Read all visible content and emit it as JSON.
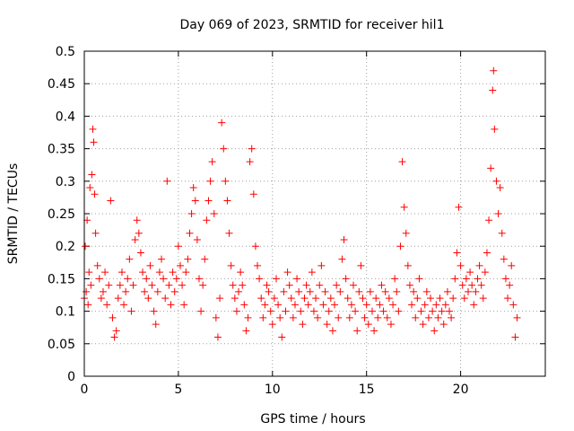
{
  "chart_data": {
    "type": "scatter",
    "title": "Day 069 of 2023, SRMTID for receiver hil1",
    "xlabel": "GPS time / hours",
    "ylabel": "SRMTID / TECUs",
    "xlim": [
      0,
      24.5
    ],
    "ylim": [
      0,
      0.5
    ],
    "x_ticks": [
      0,
      5,
      10,
      15,
      20
    ],
    "x_tick_labels": [
      "0",
      "5",
      "10",
      "15",
      "20"
    ],
    "y_ticks": [
      0,
      0.05,
      0.1,
      0.15,
      0.2,
      0.25,
      0.3,
      0.35,
      0.4,
      0.45,
      0.5
    ],
    "y_tick_labels": [
      "0",
      "0.05",
      "0.1",
      "0.15",
      "0.2",
      "0.25",
      "0.3",
      "0.35",
      "0.4",
      "0.45",
      "0.5"
    ],
    "grid": true,
    "marker": "plus",
    "color": "#ff0000",
    "series": [
      {
        "name": "SRMTID",
        "points": [
          [
            0.0,
            0.12
          ],
          [
            0.05,
            0.2
          ],
          [
            0.1,
            0.13
          ],
          [
            0.15,
            0.24
          ],
          [
            0.2,
            0.11
          ],
          [
            0.25,
            0.16
          ],
          [
            0.3,
            0.29
          ],
          [
            0.35,
            0.14
          ],
          [
            0.4,
            0.31
          ],
          [
            0.45,
            0.38
          ],
          [
            0.5,
            0.36
          ],
          [
            0.55,
            0.28
          ],
          [
            0.6,
            0.22
          ],
          [
            0.7,
            0.17
          ],
          [
            0.8,
            0.15
          ],
          [
            0.9,
            0.12
          ],
          [
            1.0,
            0.13
          ],
          [
            1.1,
            0.16
          ],
          [
            1.2,
            0.11
          ],
          [
            1.3,
            0.14
          ],
          [
            1.4,
            0.27
          ],
          [
            1.5,
            0.09
          ],
          [
            1.6,
            0.06
          ],
          [
            1.7,
            0.07
          ],
          [
            1.8,
            0.12
          ],
          [
            1.9,
            0.14
          ],
          [
            2.0,
            0.16
          ],
          [
            2.1,
            0.11
          ],
          [
            2.2,
            0.13
          ],
          [
            2.3,
            0.15
          ],
          [
            2.4,
            0.18
          ],
          [
            2.5,
            0.1
          ],
          [
            2.6,
            0.14
          ],
          [
            2.7,
            0.21
          ],
          [
            2.8,
            0.24
          ],
          [
            2.9,
            0.22
          ],
          [
            3.0,
            0.19
          ],
          [
            3.1,
            0.16
          ],
          [
            3.2,
            0.13
          ],
          [
            3.3,
            0.15
          ],
          [
            3.4,
            0.12
          ],
          [
            3.5,
            0.17
          ],
          [
            3.6,
            0.14
          ],
          [
            3.7,
            0.1
          ],
          [
            3.8,
            0.08
          ],
          [
            3.9,
            0.13
          ],
          [
            4.0,
            0.16
          ],
          [
            4.1,
            0.18
          ],
          [
            4.2,
            0.15
          ],
          [
            4.3,
            0.12
          ],
          [
            4.4,
            0.3
          ],
          [
            4.5,
            0.14
          ],
          [
            4.6,
            0.11
          ],
          [
            4.7,
            0.16
          ],
          [
            4.8,
            0.13
          ],
          [
            4.9,
            0.15
          ],
          [
            5.0,
            0.2
          ],
          [
            5.1,
            0.17
          ],
          [
            5.2,
            0.14
          ],
          [
            5.3,
            0.11
          ],
          [
            5.4,
            0.16
          ],
          [
            5.5,
            0.18
          ],
          [
            5.6,
            0.22
          ],
          [
            5.7,
            0.25
          ],
          [
            5.8,
            0.29
          ],
          [
            5.9,
            0.27
          ],
          [
            6.0,
            0.21
          ],
          [
            6.1,
            0.15
          ],
          [
            6.2,
            0.1
          ],
          [
            6.3,
            0.14
          ],
          [
            6.4,
            0.18
          ],
          [
            6.5,
            0.24
          ],
          [
            6.6,
            0.27
          ],
          [
            6.7,
            0.3
          ],
          [
            6.8,
            0.33
          ],
          [
            6.9,
            0.25
          ],
          [
            7.0,
            0.09
          ],
          [
            7.1,
            0.06
          ],
          [
            7.2,
            0.12
          ],
          [
            7.3,
            0.39
          ],
          [
            7.4,
            0.35
          ],
          [
            7.5,
            0.3
          ],
          [
            7.6,
            0.27
          ],
          [
            7.7,
            0.22
          ],
          [
            7.8,
            0.17
          ],
          [
            7.9,
            0.14
          ],
          [
            8.0,
            0.12
          ],
          [
            8.1,
            0.1
          ],
          [
            8.2,
            0.13
          ],
          [
            8.3,
            0.16
          ],
          [
            8.4,
            0.14
          ],
          [
            8.5,
            0.11
          ],
          [
            8.6,
            0.07
          ],
          [
            8.7,
            0.09
          ],
          [
            8.8,
            0.33
          ],
          [
            8.9,
            0.35
          ],
          [
            9.0,
            0.28
          ],
          [
            9.1,
            0.2
          ],
          [
            9.2,
            0.17
          ],
          [
            9.3,
            0.15
          ],
          [
            9.4,
            0.12
          ],
          [
            9.5,
            0.09
          ],
          [
            9.6,
            0.11
          ],
          [
            9.7,
            0.14
          ],
          [
            9.8,
            0.13
          ],
          [
            9.9,
            0.1
          ],
          [
            10.0,
            0.08
          ],
          [
            10.1,
            0.12
          ],
          [
            10.2,
            0.15
          ],
          [
            10.3,
            0.11
          ],
          [
            10.4,
            0.09
          ],
          [
            10.5,
            0.06
          ],
          [
            10.6,
            0.13
          ],
          [
            10.7,
            0.1
          ],
          [
            10.8,
            0.16
          ],
          [
            10.9,
            0.14
          ],
          [
            11.0,
            0.12
          ],
          [
            11.1,
            0.09
          ],
          [
            11.2,
            0.11
          ],
          [
            11.3,
            0.15
          ],
          [
            11.4,
            0.13
          ],
          [
            11.5,
            0.1
          ],
          [
            11.6,
            0.08
          ],
          [
            11.7,
            0.12
          ],
          [
            11.8,
            0.14
          ],
          [
            11.9,
            0.11
          ],
          [
            12.0,
            0.13
          ],
          [
            12.1,
            0.16
          ],
          [
            12.2,
            0.1
          ],
          [
            12.3,
            0.12
          ],
          [
            12.4,
            0.09
          ],
          [
            12.5,
            0.14
          ],
          [
            12.6,
            0.17
          ],
          [
            12.7,
            0.11
          ],
          [
            12.8,
            0.13
          ],
          [
            12.9,
            0.08
          ],
          [
            13.0,
            0.1
          ],
          [
            13.1,
            0.12
          ],
          [
            13.2,
            0.07
          ],
          [
            13.3,
            0.11
          ],
          [
            13.4,
            0.14
          ],
          [
            13.5,
            0.09
          ],
          [
            13.6,
            0.13
          ],
          [
            13.7,
            0.18
          ],
          [
            13.8,
            0.21
          ],
          [
            13.9,
            0.15
          ],
          [
            14.0,
            0.12
          ],
          [
            14.1,
            0.09
          ],
          [
            14.2,
            0.11
          ],
          [
            14.3,
            0.14
          ],
          [
            14.4,
            0.1
          ],
          [
            14.5,
            0.07
          ],
          [
            14.6,
            0.13
          ],
          [
            14.7,
            0.17
          ],
          [
            14.8,
            0.12
          ],
          [
            14.9,
            0.09
          ],
          [
            15.0,
            0.11
          ],
          [
            15.1,
            0.08
          ],
          [
            15.2,
            0.13
          ],
          [
            15.3,
            0.1
          ],
          [
            15.4,
            0.07
          ],
          [
            15.5,
            0.12
          ],
          [
            15.6,
            0.09
          ],
          [
            15.7,
            0.11
          ],
          [
            15.8,
            0.14
          ],
          [
            15.9,
            0.1
          ],
          [
            16.0,
            0.13
          ],
          [
            16.1,
            0.09
          ],
          [
            16.2,
            0.12
          ],
          [
            16.3,
            0.08
          ],
          [
            16.4,
            0.11
          ],
          [
            16.5,
            0.15
          ],
          [
            16.6,
            0.13
          ],
          [
            16.7,
            0.1
          ],
          [
            16.8,
            0.2
          ],
          [
            16.9,
            0.33
          ],
          [
            17.0,
            0.26
          ],
          [
            17.1,
            0.22
          ],
          [
            17.2,
            0.17
          ],
          [
            17.3,
            0.14
          ],
          [
            17.4,
            0.11
          ],
          [
            17.5,
            0.13
          ],
          [
            17.6,
            0.09
          ],
          [
            17.7,
            0.12
          ],
          [
            17.8,
            0.15
          ],
          [
            17.9,
            0.1
          ],
          [
            18.0,
            0.08
          ],
          [
            18.1,
            0.11
          ],
          [
            18.2,
            0.13
          ],
          [
            18.3,
            0.09
          ],
          [
            18.4,
            0.12
          ],
          [
            18.5,
            0.1
          ],
          [
            18.6,
            0.07
          ],
          [
            18.7,
            0.11
          ],
          [
            18.8,
            0.09
          ],
          [
            18.9,
            0.12
          ],
          [
            19.0,
            0.1
          ],
          [
            19.1,
            0.08
          ],
          [
            19.2,
            0.11
          ],
          [
            19.3,
            0.13
          ],
          [
            19.4,
            0.1
          ],
          [
            19.5,
            0.09
          ],
          [
            19.6,
            0.12
          ],
          [
            19.7,
            0.15
          ],
          [
            19.8,
            0.19
          ],
          [
            19.9,
            0.26
          ],
          [
            20.0,
            0.17
          ],
          [
            20.1,
            0.14
          ],
          [
            20.2,
            0.12
          ],
          [
            20.3,
            0.15
          ],
          [
            20.4,
            0.13
          ],
          [
            20.5,
            0.16
          ],
          [
            20.6,
            0.14
          ],
          [
            20.7,
            0.11
          ],
          [
            20.8,
            0.13
          ],
          [
            20.9,
            0.15
          ],
          [
            21.0,
            0.17
          ],
          [
            21.1,
            0.14
          ],
          [
            21.2,
            0.12
          ],
          [
            21.3,
            0.16
          ],
          [
            21.4,
            0.19
          ],
          [
            21.5,
            0.24
          ],
          [
            21.6,
            0.32
          ],
          [
            21.7,
            0.44
          ],
          [
            21.75,
            0.47
          ],
          [
            21.8,
            0.38
          ],
          [
            21.9,
            0.3
          ],
          [
            22.0,
            0.25
          ],
          [
            22.1,
            0.29
          ],
          [
            22.2,
            0.22
          ],
          [
            22.3,
            0.18
          ],
          [
            22.4,
            0.15
          ],
          [
            22.5,
            0.12
          ],
          [
            22.6,
            0.14
          ],
          [
            22.7,
            0.17
          ],
          [
            22.8,
            0.11
          ],
          [
            22.9,
            0.06
          ],
          [
            23.0,
            0.09
          ]
        ]
      }
    ]
  }
}
